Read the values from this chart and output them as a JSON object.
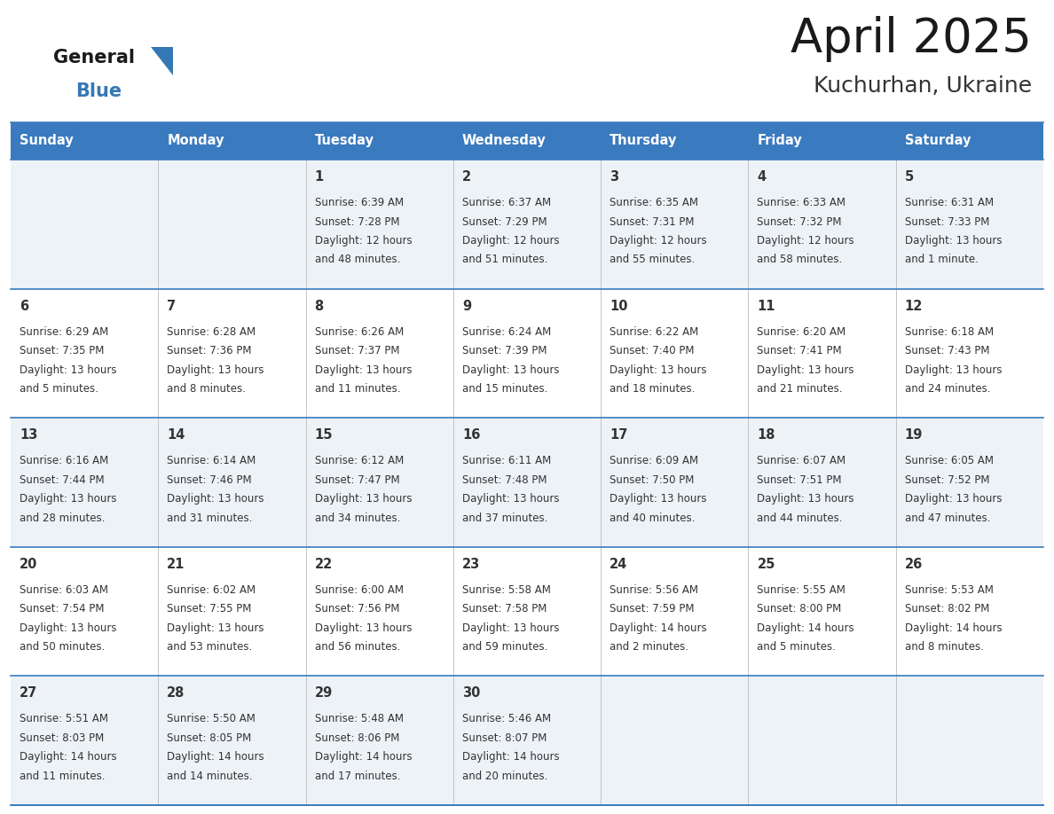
{
  "title": "April 2025",
  "subtitle": "Kuchurhan, Ukraine",
  "days_of_week": [
    "Sunday",
    "Monday",
    "Tuesday",
    "Wednesday",
    "Thursday",
    "Friday",
    "Saturday"
  ],
  "header_bg_color": "#3a7abf",
  "header_text_color": "#ffffff",
  "row_bg_colors": [
    "#edf2f7",
    "#ffffff"
  ],
  "cell_border_color": "#3a7abf",
  "title_color": "#1a1a1a",
  "subtitle_color": "#333333",
  "text_color": "#333333",
  "logo_general_color": "#1a1a1a",
  "logo_blue_color": "#3578b5",
  "calendar_data": [
    [
      {
        "day": "",
        "sunrise": "",
        "sunset": "",
        "daylight": ""
      },
      {
        "day": "",
        "sunrise": "",
        "sunset": "",
        "daylight": ""
      },
      {
        "day": "1",
        "sunrise": "Sunrise: 6:39 AM",
        "sunset": "Sunset: 7:28 PM",
        "daylight": "Daylight: 12 hours\nand 48 minutes."
      },
      {
        "day": "2",
        "sunrise": "Sunrise: 6:37 AM",
        "sunset": "Sunset: 7:29 PM",
        "daylight": "Daylight: 12 hours\nand 51 minutes."
      },
      {
        "day": "3",
        "sunrise": "Sunrise: 6:35 AM",
        "sunset": "Sunset: 7:31 PM",
        "daylight": "Daylight: 12 hours\nand 55 minutes."
      },
      {
        "day": "4",
        "sunrise": "Sunrise: 6:33 AM",
        "sunset": "Sunset: 7:32 PM",
        "daylight": "Daylight: 12 hours\nand 58 minutes."
      },
      {
        "day": "5",
        "sunrise": "Sunrise: 6:31 AM",
        "sunset": "Sunset: 7:33 PM",
        "daylight": "Daylight: 13 hours\nand 1 minute."
      }
    ],
    [
      {
        "day": "6",
        "sunrise": "Sunrise: 6:29 AM",
        "sunset": "Sunset: 7:35 PM",
        "daylight": "Daylight: 13 hours\nand 5 minutes."
      },
      {
        "day": "7",
        "sunrise": "Sunrise: 6:28 AM",
        "sunset": "Sunset: 7:36 PM",
        "daylight": "Daylight: 13 hours\nand 8 minutes."
      },
      {
        "day": "8",
        "sunrise": "Sunrise: 6:26 AM",
        "sunset": "Sunset: 7:37 PM",
        "daylight": "Daylight: 13 hours\nand 11 minutes."
      },
      {
        "day": "9",
        "sunrise": "Sunrise: 6:24 AM",
        "sunset": "Sunset: 7:39 PM",
        "daylight": "Daylight: 13 hours\nand 15 minutes."
      },
      {
        "day": "10",
        "sunrise": "Sunrise: 6:22 AM",
        "sunset": "Sunset: 7:40 PM",
        "daylight": "Daylight: 13 hours\nand 18 minutes."
      },
      {
        "day": "11",
        "sunrise": "Sunrise: 6:20 AM",
        "sunset": "Sunset: 7:41 PM",
        "daylight": "Daylight: 13 hours\nand 21 minutes."
      },
      {
        "day": "12",
        "sunrise": "Sunrise: 6:18 AM",
        "sunset": "Sunset: 7:43 PM",
        "daylight": "Daylight: 13 hours\nand 24 minutes."
      }
    ],
    [
      {
        "day": "13",
        "sunrise": "Sunrise: 6:16 AM",
        "sunset": "Sunset: 7:44 PM",
        "daylight": "Daylight: 13 hours\nand 28 minutes."
      },
      {
        "day": "14",
        "sunrise": "Sunrise: 6:14 AM",
        "sunset": "Sunset: 7:46 PM",
        "daylight": "Daylight: 13 hours\nand 31 minutes."
      },
      {
        "day": "15",
        "sunrise": "Sunrise: 6:12 AM",
        "sunset": "Sunset: 7:47 PM",
        "daylight": "Daylight: 13 hours\nand 34 minutes."
      },
      {
        "day": "16",
        "sunrise": "Sunrise: 6:11 AM",
        "sunset": "Sunset: 7:48 PM",
        "daylight": "Daylight: 13 hours\nand 37 minutes."
      },
      {
        "day": "17",
        "sunrise": "Sunrise: 6:09 AM",
        "sunset": "Sunset: 7:50 PM",
        "daylight": "Daylight: 13 hours\nand 40 minutes."
      },
      {
        "day": "18",
        "sunrise": "Sunrise: 6:07 AM",
        "sunset": "Sunset: 7:51 PM",
        "daylight": "Daylight: 13 hours\nand 44 minutes."
      },
      {
        "day": "19",
        "sunrise": "Sunrise: 6:05 AM",
        "sunset": "Sunset: 7:52 PM",
        "daylight": "Daylight: 13 hours\nand 47 minutes."
      }
    ],
    [
      {
        "day": "20",
        "sunrise": "Sunrise: 6:03 AM",
        "sunset": "Sunset: 7:54 PM",
        "daylight": "Daylight: 13 hours\nand 50 minutes."
      },
      {
        "day": "21",
        "sunrise": "Sunrise: 6:02 AM",
        "sunset": "Sunset: 7:55 PM",
        "daylight": "Daylight: 13 hours\nand 53 minutes."
      },
      {
        "day": "22",
        "sunrise": "Sunrise: 6:00 AM",
        "sunset": "Sunset: 7:56 PM",
        "daylight": "Daylight: 13 hours\nand 56 minutes."
      },
      {
        "day": "23",
        "sunrise": "Sunrise: 5:58 AM",
        "sunset": "Sunset: 7:58 PM",
        "daylight": "Daylight: 13 hours\nand 59 minutes."
      },
      {
        "day": "24",
        "sunrise": "Sunrise: 5:56 AM",
        "sunset": "Sunset: 7:59 PM",
        "daylight": "Daylight: 14 hours\nand 2 minutes."
      },
      {
        "day": "25",
        "sunrise": "Sunrise: 5:55 AM",
        "sunset": "Sunset: 8:00 PM",
        "daylight": "Daylight: 14 hours\nand 5 minutes."
      },
      {
        "day": "26",
        "sunrise": "Sunrise: 5:53 AM",
        "sunset": "Sunset: 8:02 PM",
        "daylight": "Daylight: 14 hours\nand 8 minutes."
      }
    ],
    [
      {
        "day": "27",
        "sunrise": "Sunrise: 5:51 AM",
        "sunset": "Sunset: 8:03 PM",
        "daylight": "Daylight: 14 hours\nand 11 minutes."
      },
      {
        "day": "28",
        "sunrise": "Sunrise: 5:50 AM",
        "sunset": "Sunset: 8:05 PM",
        "daylight": "Daylight: 14 hours\nand 14 minutes."
      },
      {
        "day": "29",
        "sunrise": "Sunrise: 5:48 AM",
        "sunset": "Sunset: 8:06 PM",
        "daylight": "Daylight: 14 hours\nand 17 minutes."
      },
      {
        "day": "30",
        "sunrise": "Sunrise: 5:46 AM",
        "sunset": "Sunset: 8:07 PM",
        "daylight": "Daylight: 14 hours\nand 20 minutes."
      },
      {
        "day": "",
        "sunrise": "",
        "sunset": "",
        "daylight": ""
      },
      {
        "day": "",
        "sunrise": "",
        "sunset": "",
        "daylight": ""
      },
      {
        "day": "",
        "sunrise": "",
        "sunset": "",
        "daylight": ""
      }
    ]
  ]
}
